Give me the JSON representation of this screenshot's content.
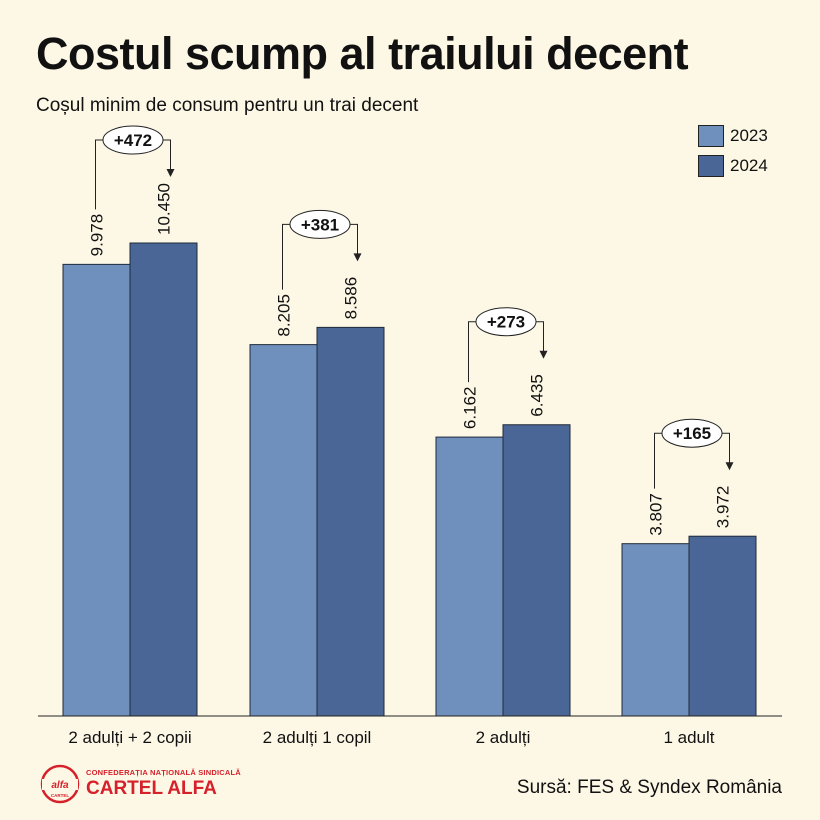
{
  "title": "Costul scump al traiului decent",
  "subtitle": "Coșul minim de consum pentru un trai decent",
  "source": "Sursă: FES & Syndex România",
  "logo": {
    "mark_text": "alfa",
    "mark_subtext": "CARTEL",
    "subtitle": "CONFEDERAȚIA NAȚIONALĂ SINDICALĂ",
    "name": "CARTEL ALFA"
  },
  "colors": {
    "series_2023": "#6f8fbd",
    "series_2024": "#4a6696",
    "background": "#fdf8e6",
    "logo_red": "#d6202a"
  },
  "chart_data": {
    "type": "bar",
    "title": "Costul scump al traiului decent",
    "subtitle": "Coșul minim de consum pentru un trai decent",
    "xlabel": "",
    "ylabel": "",
    "ylim": [
      0,
      11000
    ],
    "grid": false,
    "legend": "top-right",
    "categories": [
      "2 adulți + 2 copii",
      "2 adulți 1 copil",
      "2 adulți",
      "1 adult"
    ],
    "series": [
      {
        "name": "2023",
        "values": [
          9978,
          8205,
          6162,
          3807
        ],
        "labels": [
          "9.978",
          "8.205",
          "6.162",
          "3.807"
        ]
      },
      {
        "name": "2024",
        "values": [
          10450,
          8586,
          6435,
          3972
        ],
        "labels": [
          "10.450",
          "8.586",
          "6.435",
          "3.972"
        ]
      }
    ],
    "annotations": [
      "+472",
      "+381",
      "+273",
      "+165"
    ]
  }
}
